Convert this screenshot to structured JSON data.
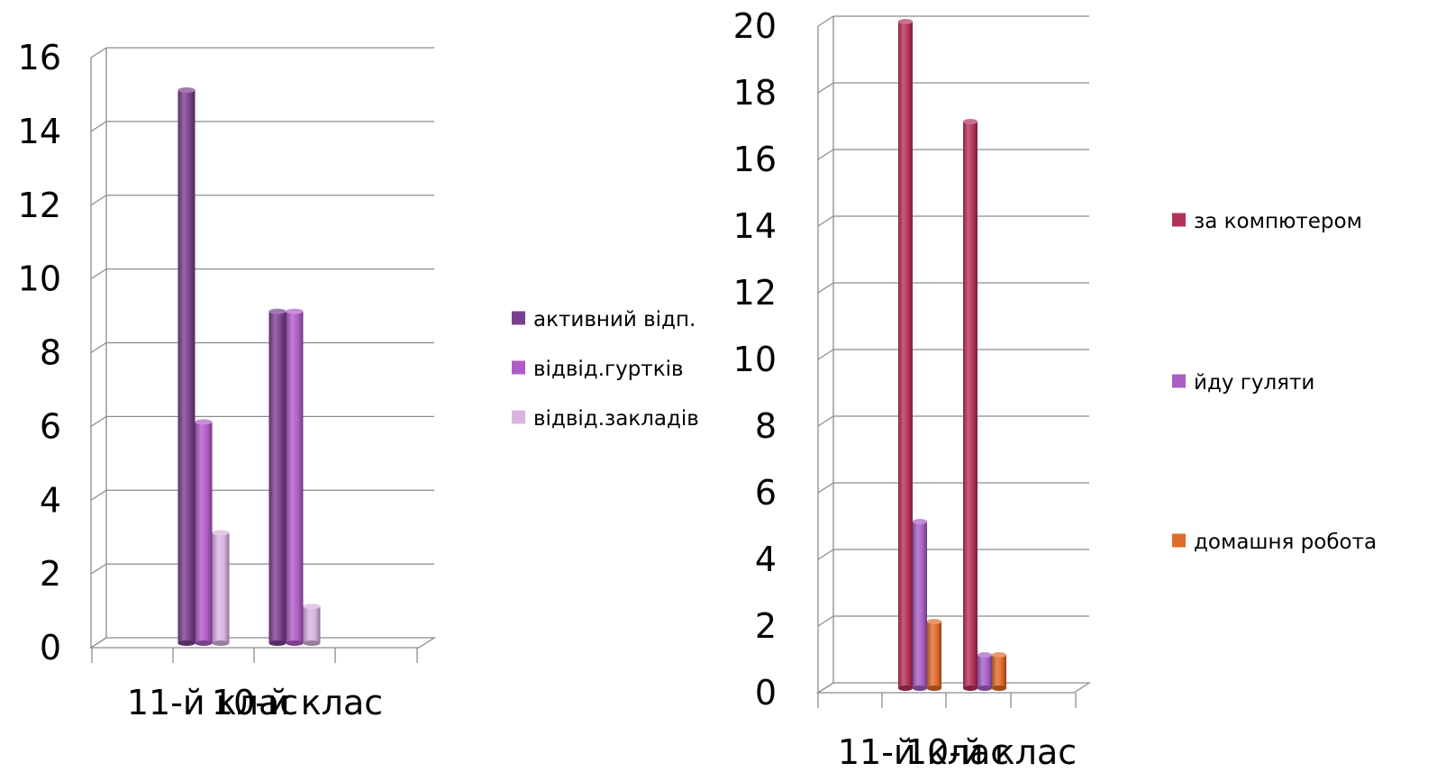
{
  "chart_data": [
    {
      "type": "bar",
      "categories": [
        "11-й клас",
        "10-й клас"
      ],
      "series": [
        {
          "name": "активний відп.",
          "values": [
            15,
            9
          ],
          "color": "#7b3f8f"
        },
        {
          "name": "відвід.гуртків",
          "values": [
            6,
            9
          ],
          "color": "#b05cc6"
        },
        {
          "name": "відвід.закладів",
          "values": [
            3,
            1
          ],
          "color": "#d9b3e0"
        }
      ],
      "ylim": [
        0,
        16
      ],
      "yticks": [
        0,
        2,
        4,
        6,
        8,
        10,
        12,
        14,
        16
      ],
      "grid": true,
      "legend": "right"
    },
    {
      "type": "bar",
      "categories": [
        "11-й клас",
        "10-й клас"
      ],
      "series": [
        {
          "name": "за компютером",
          "values": [
            20,
            17
          ],
          "color": "#b3325a"
        },
        {
          "name": "йду гуляти",
          "values": [
            5,
            1
          ],
          "color": "#a75fc4"
        },
        {
          "name": "домашня робота",
          "values": [
            2,
            1
          ],
          "color": "#e06a2a"
        }
      ],
      "ylim": [
        0,
        20
      ],
      "yticks": [
        0,
        2,
        4,
        6,
        8,
        10,
        12,
        14,
        16,
        18,
        20
      ],
      "grid": true,
      "legend": "right"
    }
  ]
}
